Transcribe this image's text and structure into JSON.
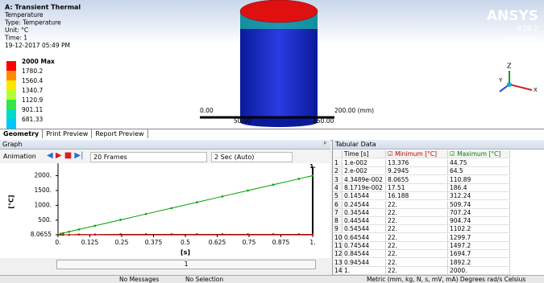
{
  "viewport": {
    "title": "A: Transient Thermal",
    "lines": [
      "Temperature",
      "Type: Temperature",
      "Unit: °C",
      "Time: 1",
      "19-12-2017 05:49 PM"
    ],
    "legend": [
      {
        "label": "2000 Max",
        "color": "#ff0000"
      },
      {
        "label": "1780.2",
        "color": "#ff8c00"
      },
      {
        "label": "1560.4",
        "color": "#ffe600"
      },
      {
        "label": "1340.7",
        "color": "#b4ff32"
      },
      {
        "label": "1120.9",
        "color": "#32e646"
      },
      {
        "label": "901.11",
        "color": "#00dcc8"
      },
      {
        "label": "681.33",
        "color": "#00c8ff"
      }
    ],
    "scale_labels": [
      "0.00",
      "50.00",
      "150.00",
      "200.00 (mm)"
    ],
    "brand": "ANSYS",
    "version": "R18.2",
    "edition": "Academic"
  },
  "tabs": [
    "Geometry",
    "Print Preview",
    "Report Preview"
  ],
  "graph_panel": {
    "title": "Graph",
    "animation": "Animation",
    "frames": "20 Frames",
    "speed": "2 Sec (Auto)",
    "frame_value": "1"
  },
  "chart_data": {
    "type": "line",
    "x_label": "[s]",
    "y_label": "[°C]",
    "end_label": "1.",
    "x": [
      0.01,
      0.02,
      0.043489,
      0.081719,
      0.14544,
      0.24544,
      0.34544,
      0.44544,
      0.54544,
      0.64544,
      0.74544,
      0.84544,
      0.94544,
      1
    ],
    "series": [
      {
        "name": "Minimum [°C]",
        "color": "#c00000",
        "values": [
          13.376,
          9.2945,
          8.0655,
          17.51,
          16.188,
          22,
          22,
          22,
          22,
          22,
          22,
          22,
          22,
          22
        ]
      },
      {
        "name": "Maximum [°C]",
        "color": "#00a000",
        "values": [
          44.75,
          64.5,
          110.89,
          186.4,
          312.24,
          509.74,
          707.24,
          904.74,
          1102.2,
          1299.7,
          1497.2,
          1694.7,
          1892.2,
          2000
        ]
      }
    ],
    "xlim": [
      0,
      1
    ],
    "ylim": [
      8.0655,
      2500
    ],
    "xticks": [
      {
        "value": 0,
        "label": "0."
      },
      0.125,
      0.25,
      0.375,
      0.5,
      0.625,
      0.75,
      0.875,
      {
        "value": 1,
        "label": "1."
      }
    ],
    "yticks": [
      {
        "value": 2000,
        "label": "2000."
      },
      {
        "value": 1500,
        "label": "1500."
      },
      {
        "value": 1000,
        "label": "1000."
      },
      {
        "value": 500,
        "label": "500."
      },
      8.0655
    ]
  },
  "tabular": {
    "title": "Tabular Data",
    "time_header": "Time [s]",
    "rows": [
      [
        "1",
        "1.e-002",
        "13.376",
        "44.75"
      ],
      [
        "2",
        "2.e-002",
        "9.2945",
        "64.5"
      ],
      [
        "3",
        "4.3489e-002",
        "8.0655",
        "110.89"
      ],
      [
        "4",
        "8.1719e-002",
        "17.51",
        "186.4"
      ],
      [
        "5",
        "0.14544",
        "16.188",
        "312.24"
      ],
      [
        "6",
        "0.24544",
        "22.",
        "509.74"
      ],
      [
        "7",
        "0.34544",
        "22.",
        "707.24"
      ],
      [
        "8",
        "0.44544",
        "22.",
        "904.74"
      ],
      [
        "9",
        "0.54544",
        "22.",
        "1102.2"
      ],
      [
        "10",
        "0.64544",
        "22.",
        "1299.7"
      ],
      [
        "11",
        "0.74544",
        "22.",
        "1497.2"
      ],
      [
        "12",
        "0.84544",
        "22.",
        "1694.7"
      ],
      [
        "13",
        "0.94544",
        "22.",
        "1892.2"
      ],
      [
        "14",
        "1.",
        "22.",
        "2000."
      ]
    ]
  },
  "status": [
    "No Messages",
    "No Selection",
    "Metric (mm, kg, N, s, mV, mA)  Degrees  rad/s  Celsius"
  ]
}
